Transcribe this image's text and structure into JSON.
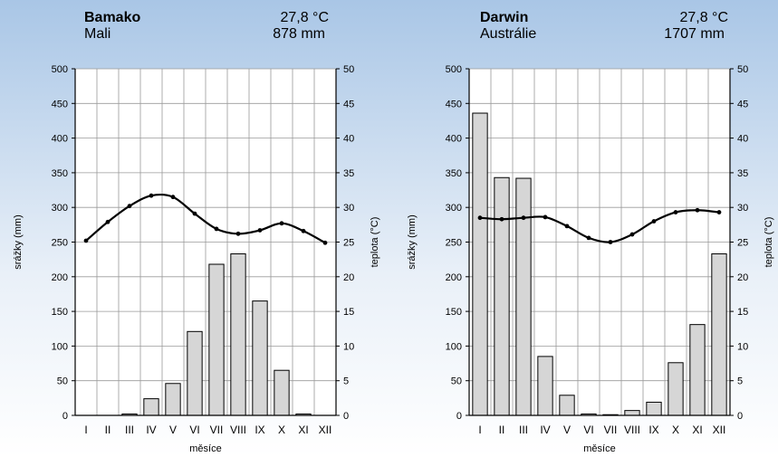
{
  "chart_data": [
    {
      "type": "bar",
      "title": "Bamako",
      "subtitle": "Mali",
      "annual_temperature": "27,8 °C",
      "annual_precipitation": "878 mm",
      "xlabel": "měsíce",
      "ylabel": "srážky (mm)",
      "y2label": "teplota (°C)",
      "ylim": [
        0,
        500
      ],
      "y2lim": [
        0,
        50
      ],
      "y_ticks": [
        "0",
        "50",
        "100",
        "150",
        "200",
        "250",
        "300",
        "350",
        "400",
        "450",
        "500"
      ],
      "y2_ticks": [
        "0",
        "5",
        "10",
        "15",
        "20",
        "25",
        "30",
        "35",
        "40",
        "45",
        "50"
      ],
      "grid": true,
      "categories": [
        "I",
        "II",
        "III",
        "IV",
        "V",
        "VI",
        "VII",
        "VIII",
        "IX",
        "X",
        "XI",
        "XII"
      ],
      "series": [
        {
          "type": "bar",
          "values": [
            0,
            0,
            2,
            24,
            46,
            121,
            218,
            233,
            165,
            65,
            2,
            0
          ]
        },
        {
          "type": "line",
          "axis": "right",
          "values": [
            25.2,
            27.9,
            30.2,
            31.7,
            31.5,
            29.1,
            26.9,
            26.2,
            26.7,
            27.7,
            26.6,
            24.9
          ]
        }
      ]
    },
    {
      "type": "bar",
      "title": "Darwin",
      "subtitle": "Austrálie",
      "annual_temperature": "27,8 °C",
      "annual_precipitation": "1707 mm",
      "xlabel": "měsíce",
      "ylabel": "srážky (mm)",
      "y2label": "teplota (°C)",
      "ylim": [
        0,
        500
      ],
      "y2lim": [
        0,
        50
      ],
      "y_ticks": [
        "0",
        "50",
        "100",
        "150",
        "200",
        "250",
        "300",
        "350",
        "400",
        "450",
        "500"
      ],
      "y2_ticks": [
        "0",
        "5",
        "10",
        "15",
        "20",
        "25",
        "30",
        "35",
        "40",
        "45",
        "50"
      ],
      "grid": true,
      "categories": [
        "I",
        "II",
        "III",
        "IV",
        "V",
        "VI",
        "VII",
        "VIII",
        "IX",
        "X",
        "XI",
        "XII"
      ],
      "series": [
        {
          "type": "bar",
          "values": [
            436,
            343,
            342,
            85,
            29,
            2,
            1,
            7,
            19,
            76,
            131,
            233
          ]
        },
        {
          "type": "line",
          "axis": "right",
          "values": [
            28.5,
            28.3,
            28.5,
            28.6,
            27.3,
            25.6,
            25.0,
            26.1,
            28.0,
            29.3,
            29.6,
            29.3
          ]
        }
      ]
    }
  ]
}
